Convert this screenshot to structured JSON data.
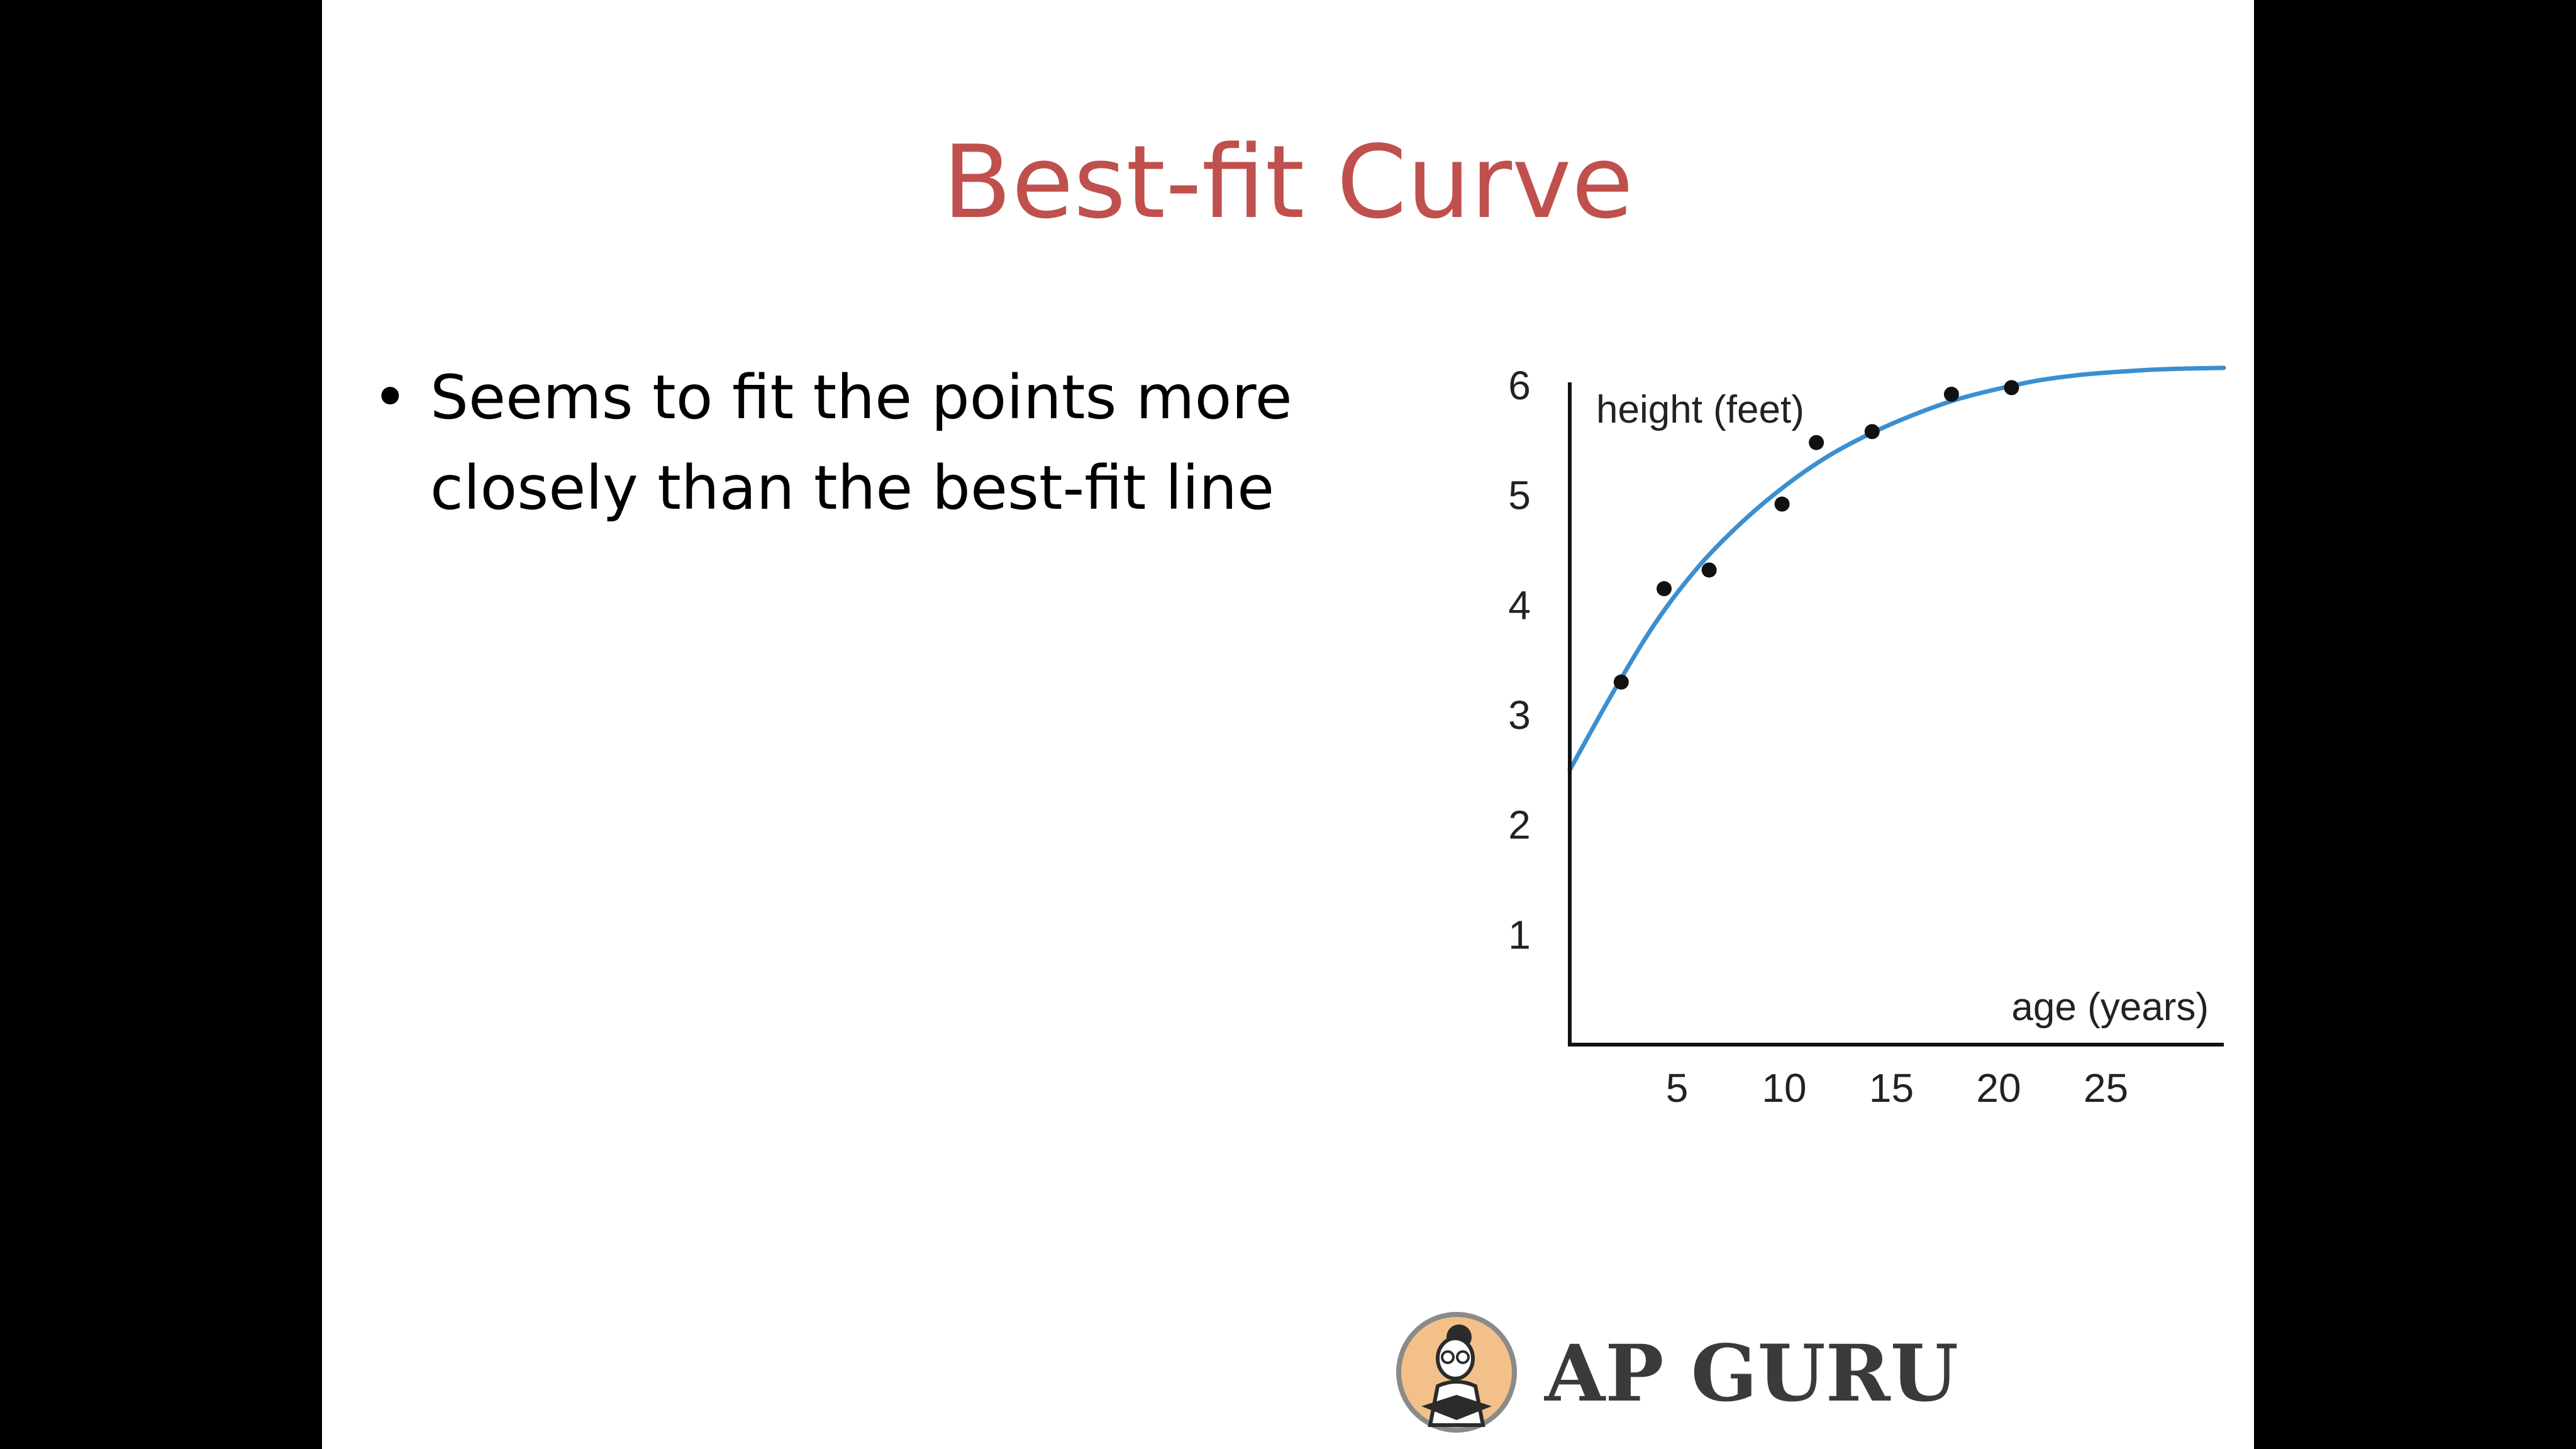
{
  "slide": {
    "title": "Best-fit Curve",
    "bullets": [
      "Seems to fit the points more closely than the best-fit line"
    ]
  },
  "logo": {
    "text": "AP GURU",
    "icon": "reading-student-icon"
  },
  "colors": {
    "title": "#c0504d",
    "curve": "#3b8fd0",
    "points": "#111111",
    "axis": "#111111",
    "background": "#ffffff",
    "letterbox": "#000000"
  },
  "chart_data": {
    "type": "scatter",
    "title": "",
    "xlabel": "age (years)",
    "ylabel": "height (feet)",
    "x_ticks": [
      5,
      10,
      15,
      20,
      25
    ],
    "y_ticks": [
      1,
      2,
      3,
      4,
      5,
      6
    ],
    "xlim": [
      0,
      30.5
    ],
    "ylim": [
      0,
      6.4
    ],
    "grid": false,
    "series": [
      {
        "kind": "points",
        "points": [
          {
            "x": 2.4,
            "y": 3.3
          },
          {
            "x": 4.4,
            "y": 4.15
          },
          {
            "x": 6.5,
            "y": 4.32
          },
          {
            "x": 9.9,
            "y": 4.92
          },
          {
            "x": 11.5,
            "y": 5.48
          },
          {
            "x": 14.1,
            "y": 5.58
          },
          {
            "x": 17.8,
            "y": 5.92
          },
          {
            "x": 20.6,
            "y": 5.98
          }
        ]
      },
      {
        "kind": "curve",
        "points": [
          {
            "x": 0,
            "y": 2.5
          },
          {
            "x": 2,
            "y": 3.2
          },
          {
            "x": 4,
            "y": 3.84
          },
          {
            "x": 6,
            "y": 4.35
          },
          {
            "x": 8,
            "y": 4.75
          },
          {
            "x": 10,
            "y": 5.08
          },
          {
            "x": 12,
            "y": 5.35
          },
          {
            "x": 14,
            "y": 5.56
          },
          {
            "x": 16,
            "y": 5.73
          },
          {
            "x": 18,
            "y": 5.87
          },
          {
            "x": 20,
            "y": 5.97
          },
          {
            "x": 22,
            "y": 6.05
          },
          {
            "x": 24,
            "y": 6.1
          },
          {
            "x": 26,
            "y": 6.13
          },
          {
            "x": 28,
            "y": 6.15
          },
          {
            "x": 30.5,
            "y": 6.16
          }
        ]
      }
    ]
  }
}
